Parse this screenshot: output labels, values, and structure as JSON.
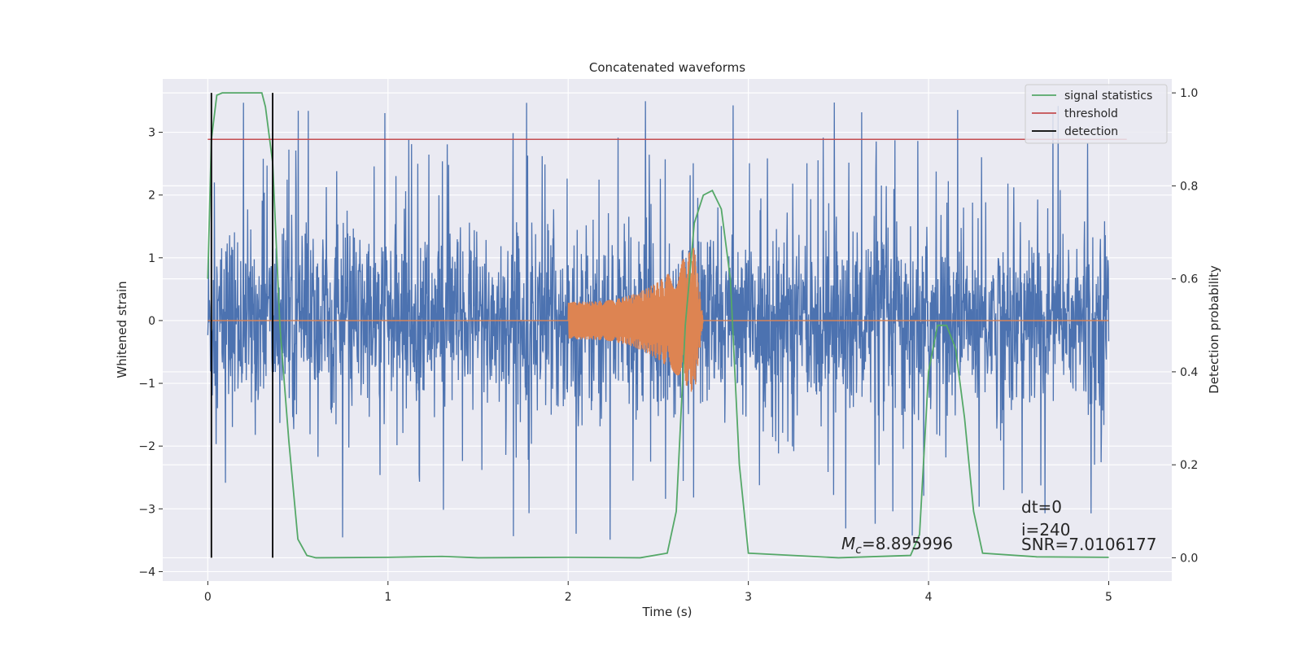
{
  "chart_data": {
    "type": "line",
    "title": "Concatenated waveforms",
    "xlabel": "Time (s)",
    "ylabel": "Whitened strain",
    "y2label": "Detection probability",
    "xlim": [
      -0.25,
      5.35
    ],
    "ylim": [
      -4.15,
      3.85
    ],
    "y2lim": [
      -0.05,
      1.03
    ],
    "xticks": [
      0,
      1,
      2,
      3,
      4,
      5
    ],
    "yticks": [
      -4,
      -3,
      -2,
      -1,
      0,
      1,
      2,
      3
    ],
    "y2ticks": [
      0.0,
      0.2,
      0.4,
      0.6,
      0.8,
      1.0
    ],
    "xtick_labels": [
      "0",
      "1",
      "2",
      "3",
      "4",
      "5"
    ],
    "ytick_labels": [
      "−4",
      "−3",
      "−2",
      "−1",
      "0",
      "1",
      "2",
      "3"
    ],
    "y2tick_labels": [
      "0.0",
      "0.2",
      "0.4",
      "0.6",
      "0.8",
      "1.0"
    ],
    "grid": true,
    "legend_placement": "top-right",
    "colors": {
      "strain": "#4c72b0",
      "template": "#dd8452",
      "signal_statistics": "#55a868",
      "threshold": "#c44e52",
      "detection": "#000000",
      "background": "#eaeaf2",
      "grid": "#ffffff"
    },
    "series": [
      {
        "name": "signal statistics",
        "axis": "right",
        "x": [
          0.0,
          0.02,
          0.05,
          0.08,
          0.1,
          0.2,
          0.3,
          0.32,
          0.36,
          0.4,
          0.45,
          0.5,
          0.55,
          0.6,
          1.0,
          1.3,
          1.5,
          2.0,
          2.4,
          2.55,
          2.6,
          2.65,
          2.7,
          2.75,
          2.8,
          2.85,
          2.9,
          2.95,
          3.0,
          3.5,
          3.9,
          3.95,
          4.0,
          4.05,
          4.1,
          4.15,
          4.2,
          4.25,
          4.3,
          4.6,
          5.0
        ],
        "y": [
          0.6,
          0.9,
          0.995,
          1.0,
          1.0,
          1.0,
          1.0,
          0.97,
          0.85,
          0.5,
          0.25,
          0.04,
          0.005,
          0.0,
          0.001,
          0.003,
          0.0,
          0.001,
          0.0,
          0.01,
          0.1,
          0.5,
          0.72,
          0.78,
          0.79,
          0.75,
          0.6,
          0.2,
          0.01,
          0.0,
          0.005,
          0.05,
          0.4,
          0.5,
          0.5,
          0.45,
          0.3,
          0.1,
          0.01,
          0.002,
          0.001
        ]
      },
      {
        "name": "threshold",
        "axis": "right",
        "x": [
          0.0,
          5.1
        ],
        "y": [
          0.9,
          0.9
        ]
      },
      {
        "name": "detection",
        "axis": "right",
        "x": [
          0.02,
          0.36
        ],
        "y": [
          0.0,
          1.0
        ]
      }
    ],
    "strain": {
      "x_range": [
        0.0,
        5.0
      ],
      "typical_amplitude": [
        -1.3,
        1.3
      ],
      "max_peak": 3.5,
      "min_trough": -3.85
    },
    "template_waveform": {
      "x_range": [
        0.0,
        5.0
      ],
      "chirp_start": 2.0,
      "merger": 2.7,
      "start_amplitude": 0.3,
      "peak_amplitude": 1.2
    },
    "legend": [
      "signal statistics",
      "threshold",
      "detection"
    ],
    "annotations": {
      "dt": "dt=0",
      "i": "i=240",
      "mc_symbol": "M",
      "mc_sub": "c",
      "mc_value": "=8.895996",
      "snr": "SNR=7.0106177"
    }
  }
}
